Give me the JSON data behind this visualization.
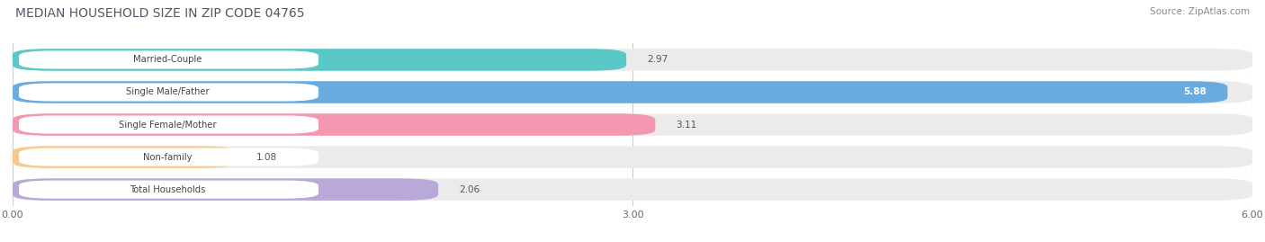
{
  "title": "MEDIAN HOUSEHOLD SIZE IN ZIP CODE 04765",
  "source": "Source: ZipAtlas.com",
  "categories": [
    "Married-Couple",
    "Single Male/Father",
    "Single Female/Mother",
    "Non-family",
    "Total Households"
  ],
  "values": [
    2.97,
    5.88,
    3.11,
    1.08,
    2.06
  ],
  "bar_colors": [
    "#5bc8c8",
    "#6aabdf",
    "#f497b0",
    "#f8c98a",
    "#b8a9d9"
  ],
  "bar_bg_colors": [
    "#ebebeb",
    "#ebebeb",
    "#ebebeb",
    "#ebebeb",
    "#ebebeb"
  ],
  "label_bg_color": "#ffffff",
  "value_label_colors": [
    "#555555",
    "#ffffff",
    "#555555",
    "#555555",
    "#555555"
  ],
  "xlim": [
    0,
    6.0
  ],
  "xticks": [
    0.0,
    3.0,
    6.0
  ],
  "xtick_labels": [
    "0.00",
    "3.00",
    "6.00"
  ],
  "background_color": "#ffffff",
  "plot_bg_color": "#f0f0f0",
  "bar_height": 0.68,
  "figsize": [
    14.06,
    2.69
  ],
  "dpi": 100
}
